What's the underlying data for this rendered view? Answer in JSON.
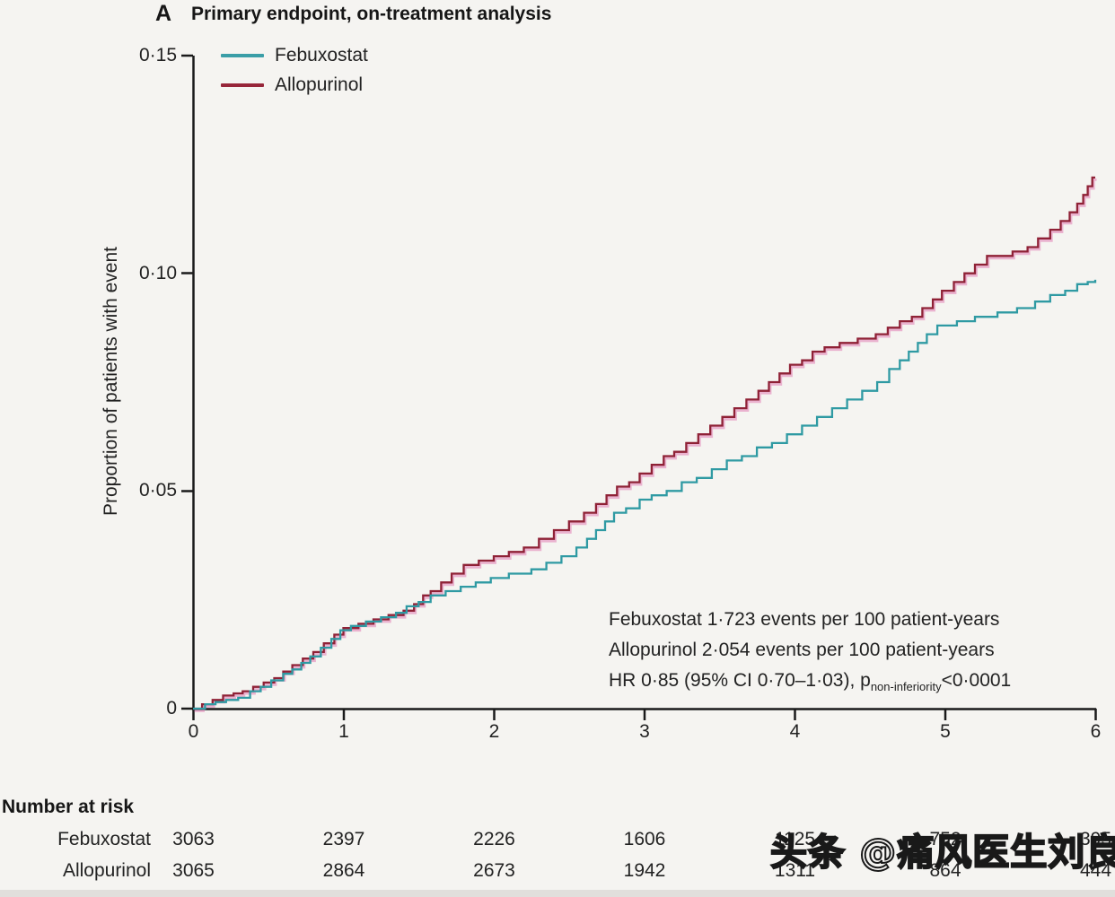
{
  "figure": {
    "panel_label": "A",
    "title": "Primary endpoint, on-treatment analysis"
  },
  "legend": {
    "items": [
      {
        "label": "Febuxostat",
        "color": "#3a9ea7"
      },
      {
        "label": "Allopurinol",
        "color": "#97263a"
      }
    ]
  },
  "annotation": {
    "line1": "Febuxostat 1·723 events per 100 patient-years",
    "line2": "Allopurinol 2·054 events per 100 patient-years",
    "hr_prefix": "HR 0·85 (95% CI 0·70–1·03), p",
    "hr_sub": "non-inferiority",
    "hr_suffix": "<0·0001"
  },
  "chart_data": {
    "type": "line",
    "subtype": "kaplan-meier-step",
    "title": "Primary endpoint, on-treatment analysis",
    "xlabel": "",
    "ylabel": "Proportion of patients with event",
    "xlim": [
      0,
      6
    ],
    "ylim": [
      0,
      0.15
    ],
    "grid": false,
    "legend_position": "top-left",
    "x_ticks": [
      0,
      1,
      2,
      3,
      4,
      5,
      6
    ],
    "x_tick_labels": [
      "0",
      "1",
      "2",
      "3",
      "4",
      "5",
      "6"
    ],
    "y_ticks": [
      0.15,
      0.1,
      0.05,
      0
    ],
    "y_tick_labels": [
      "0·15",
      "0·10",
      "0·05",
      "0"
    ],
    "series": [
      {
        "name": "Allopurinol",
        "color": "#8f2136",
        "fringe": "#e06fae",
        "points": [
          [
            0,
            0
          ],
          [
            0.06,
            0.001
          ],
          [
            0.13,
            0.002
          ],
          [
            0.2,
            0.003
          ],
          [
            0.27,
            0.0035
          ],
          [
            0.33,
            0.004
          ],
          [
            0.4,
            0.005
          ],
          [
            0.47,
            0.006
          ],
          [
            0.54,
            0.007
          ],
          [
            0.6,
            0.0085
          ],
          [
            0.66,
            0.01
          ],
          [
            0.73,
            0.0115
          ],
          [
            0.8,
            0.013
          ],
          [
            0.87,
            0.015
          ],
          [
            0.94,
            0.017
          ],
          [
            1.0,
            0.0185
          ],
          [
            1.1,
            0.0195
          ],
          [
            1.2,
            0.0205
          ],
          [
            1.3,
            0.0215
          ],
          [
            1.4,
            0.0225
          ],
          [
            1.47,
            0.024
          ],
          [
            1.53,
            0.026
          ],
          [
            1.58,
            0.027
          ],
          [
            1.65,
            0.029
          ],
          [
            1.72,
            0.031
          ],
          [
            1.8,
            0.033
          ],
          [
            1.9,
            0.034
          ],
          [
            2.0,
            0.035
          ],
          [
            2.1,
            0.036
          ],
          [
            2.2,
            0.037
          ],
          [
            2.3,
            0.039
          ],
          [
            2.4,
            0.041
          ],
          [
            2.5,
            0.043
          ],
          [
            2.6,
            0.045
          ],
          [
            2.68,
            0.047
          ],
          [
            2.75,
            0.049
          ],
          [
            2.82,
            0.051
          ],
          [
            2.9,
            0.052
          ],
          [
            2.97,
            0.054
          ],
          [
            3.05,
            0.056
          ],
          [
            3.13,
            0.058
          ],
          [
            3.2,
            0.059
          ],
          [
            3.28,
            0.061
          ],
          [
            3.36,
            0.063
          ],
          [
            3.44,
            0.065
          ],
          [
            3.52,
            0.067
          ],
          [
            3.6,
            0.069
          ],
          [
            3.68,
            0.071
          ],
          [
            3.76,
            0.073
          ],
          [
            3.83,
            0.075
          ],
          [
            3.9,
            0.077
          ],
          [
            3.97,
            0.079
          ],
          [
            4.05,
            0.08
          ],
          [
            4.12,
            0.082
          ],
          [
            4.2,
            0.083
          ],
          [
            4.3,
            0.084
          ],
          [
            4.42,
            0.085
          ],
          [
            4.54,
            0.086
          ],
          [
            4.62,
            0.0875
          ],
          [
            4.7,
            0.089
          ],
          [
            4.78,
            0.09
          ],
          [
            4.85,
            0.092
          ],
          [
            4.92,
            0.094
          ],
          [
            4.98,
            0.096
          ],
          [
            5.06,
            0.098
          ],
          [
            5.13,
            0.1
          ],
          [
            5.2,
            0.102
          ],
          [
            5.28,
            0.104
          ],
          [
            5.45,
            0.105
          ],
          [
            5.55,
            0.106
          ],
          [
            5.62,
            0.108
          ],
          [
            5.7,
            0.11
          ],
          [
            5.77,
            0.112
          ],
          [
            5.83,
            0.114
          ],
          [
            5.88,
            0.116
          ],
          [
            5.92,
            0.118
          ],
          [
            5.95,
            0.12
          ],
          [
            5.98,
            0.122
          ],
          [
            6.0,
            0.122
          ]
        ]
      },
      {
        "name": "Febuxostat",
        "color": "#2f9aa3",
        "fringe": null,
        "points": [
          [
            0,
            0
          ],
          [
            0.08,
            0.001
          ],
          [
            0.15,
            0.0015
          ],
          [
            0.22,
            0.002
          ],
          [
            0.3,
            0.0025
          ],
          [
            0.38,
            0.004
          ],
          [
            0.45,
            0.005
          ],
          [
            0.52,
            0.0065
          ],
          [
            0.6,
            0.008
          ],
          [
            0.66,
            0.009
          ],
          [
            0.72,
            0.0105
          ],
          [
            0.78,
            0.012
          ],
          [
            0.85,
            0.014
          ],
          [
            0.92,
            0.016
          ],
          [
            0.98,
            0.018
          ],
          [
            1.05,
            0.019
          ],
          [
            1.15,
            0.02
          ],
          [
            1.25,
            0.021
          ],
          [
            1.35,
            0.022
          ],
          [
            1.42,
            0.0235
          ],
          [
            1.5,
            0.0245
          ],
          [
            1.58,
            0.026
          ],
          [
            1.68,
            0.027
          ],
          [
            1.78,
            0.028
          ],
          [
            1.88,
            0.029
          ],
          [
            1.98,
            0.03
          ],
          [
            2.1,
            0.031
          ],
          [
            2.25,
            0.032
          ],
          [
            2.35,
            0.0335
          ],
          [
            2.45,
            0.035
          ],
          [
            2.55,
            0.037
          ],
          [
            2.62,
            0.039
          ],
          [
            2.68,
            0.041
          ],
          [
            2.74,
            0.043
          ],
          [
            2.8,
            0.045
          ],
          [
            2.88,
            0.046
          ],
          [
            2.97,
            0.048
          ],
          [
            3.05,
            0.049
          ],
          [
            3.15,
            0.05
          ],
          [
            3.25,
            0.052
          ],
          [
            3.35,
            0.053
          ],
          [
            3.45,
            0.055
          ],
          [
            3.55,
            0.057
          ],
          [
            3.65,
            0.058
          ],
          [
            3.75,
            0.06
          ],
          [
            3.85,
            0.061
          ],
          [
            3.95,
            0.063
          ],
          [
            4.05,
            0.065
          ],
          [
            4.15,
            0.067
          ],
          [
            4.25,
            0.069
          ],
          [
            4.35,
            0.071
          ],
          [
            4.45,
            0.073
          ],
          [
            4.55,
            0.075
          ],
          [
            4.63,
            0.078
          ],
          [
            4.7,
            0.08
          ],
          [
            4.76,
            0.082
          ],
          [
            4.82,
            0.084
          ],
          [
            4.88,
            0.086
          ],
          [
            4.95,
            0.088
          ],
          [
            5.08,
            0.089
          ],
          [
            5.2,
            0.09
          ],
          [
            5.35,
            0.091
          ],
          [
            5.48,
            0.092
          ],
          [
            5.6,
            0.0935
          ],
          [
            5.7,
            0.095
          ],
          [
            5.8,
            0.096
          ],
          [
            5.88,
            0.0975
          ],
          [
            5.95,
            0.098
          ],
          [
            6.0,
            0.0985
          ]
        ]
      }
    ],
    "annotations": [
      "Febuxostat 1·723 events per 100 patient-years",
      "Allopurinol 2·054 events per 100 patient-years",
      "HR 0·85 (95% CI 0·70–1·03), p non-inferiority <0·0001"
    ]
  },
  "risk_table": {
    "title": "Number at risk",
    "time_points": [
      0,
      1,
      2,
      3,
      4,
      5,
      6
    ],
    "rows": [
      {
        "label": "Febuxostat",
        "values": [
          "3063",
          "2397",
          "2226",
          "1606",
          "1125",
          "752",
          "395"
        ]
      },
      {
        "label": "Allopurinol",
        "values": [
          "3065",
          "2864",
          "2673",
          "1942",
          "1311",
          "864",
          "444"
        ]
      }
    ]
  },
  "watermark": "头条 @痛风医生刘良运"
}
